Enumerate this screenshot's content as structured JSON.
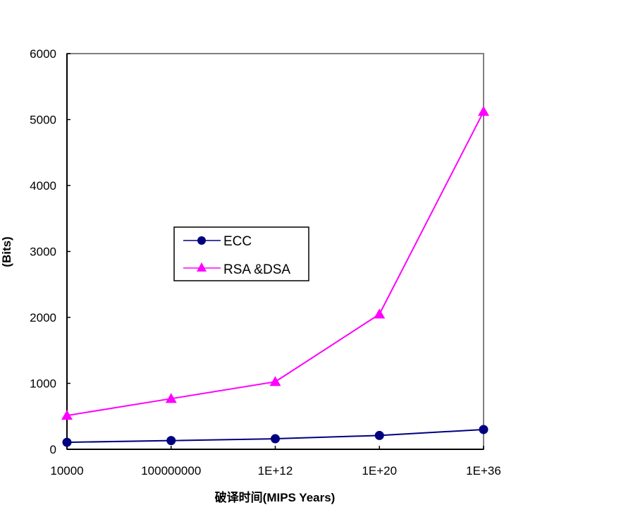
{
  "chart_data": {
    "type": "line",
    "title": "",
    "xlabel": "破译时间(MIPS Years)",
    "ylabel": "(Bits)",
    "categories": [
      "10000",
      "100000000",
      "1E+12",
      "1E+20",
      "1E+36"
    ],
    "ylim": [
      0,
      6000
    ],
    "yticks": [
      0,
      1000,
      2000,
      3000,
      4000,
      5000,
      6000
    ],
    "grid": false,
    "legend_position": "inside-center-left",
    "series": [
      {
        "name": "ECC",
        "color": "#000080",
        "marker": "circle",
        "values": [
          106,
          132,
          160,
          210,
          300
        ]
      },
      {
        "name": "RSA &DSA",
        "color": "#ff00ff",
        "marker": "triangle",
        "values": [
          512,
          768,
          1024,
          2048,
          5120
        ]
      }
    ]
  },
  "legend": {
    "items": [
      {
        "label": "ECC"
      },
      {
        "label": "RSA &DSA"
      }
    ]
  }
}
